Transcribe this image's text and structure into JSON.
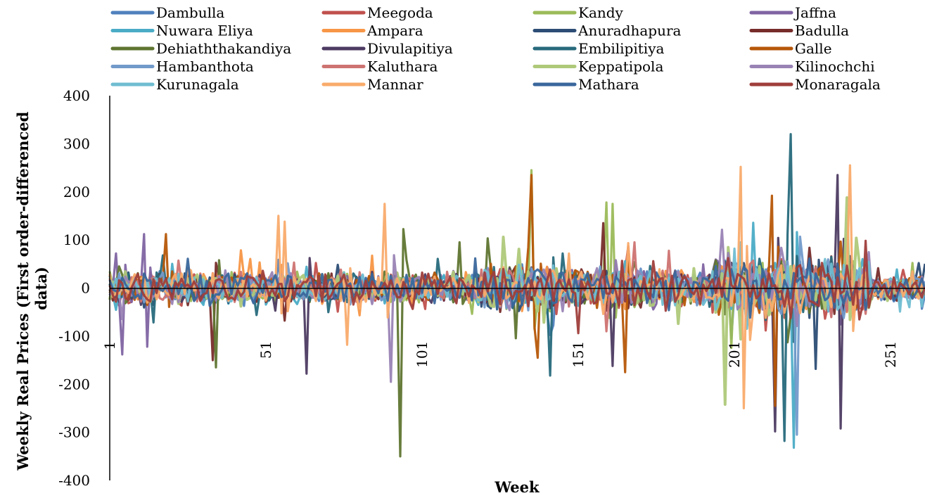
{
  "chart_data": {
    "type": "line",
    "title": "",
    "xlabel": "Week",
    "ylabel": "Weekly Real Prices (First order-differenced data)",
    "ylim": [
      -400,
      400
    ],
    "yticks": [
      400,
      300,
      200,
      100,
      0,
      -100,
      -200,
      -300,
      -400
    ],
    "xlim": [
      1,
      262
    ],
    "xticks": [
      1,
      51,
      101,
      151,
      201,
      251
    ],
    "grid": false,
    "legend_position": "top",
    "series": [
      {
        "name": "Dambulla",
        "color": "#4F81BD"
      },
      {
        "name": "Meegoda",
        "color": "#C0504D"
      },
      {
        "name": "Kandy",
        "color": "#9BBB59"
      },
      {
        "name": "Jaffna",
        "color": "#8064A2"
      },
      {
        "name": "Nuwara Eliya",
        "color": "#4BACC6"
      },
      {
        "name": "Ampara",
        "color": "#F79646"
      },
      {
        "name": "Anuradhapura",
        "color": "#2C4D75"
      },
      {
        "name": "Badulla",
        "color": "#772C2A"
      },
      {
        "name": "Dehiaththakandiya",
        "color": "#5F7530"
      },
      {
        "name": "Divulapitiya",
        "color": "#4D3B62"
      },
      {
        "name": "Embilipitiya",
        "color": "#276A7C"
      },
      {
        "name": "Galle",
        "color": "#B65708"
      },
      {
        "name": "Hambanthota",
        "color": "#729ACA"
      },
      {
        "name": "Kaluthara",
        "color": "#CD7371"
      },
      {
        "name": "Keppatipola",
        "color": "#AFC97A"
      },
      {
        "name": "Kilinochchi",
        "color": "#9983B5"
      },
      {
        "name": "Kurunagala",
        "color": "#6FBDD1"
      },
      {
        "name": "Mannar",
        "color": "#F9AB6B"
      },
      {
        "name": "Mathara",
        "color": "#3A679C"
      },
      {
        "name": "Monaragala",
        "color": "#9F3E3B"
      }
    ],
    "spikes": [
      {
        "series": "Jaffna",
        "week": 3,
        "value": 72
      },
      {
        "series": "Jaffna",
        "week": 5,
        "value": -138
      },
      {
        "series": "Jaffna",
        "week": 12,
        "value": 112
      },
      {
        "series": "Jaffna",
        "week": 13,
        "value": -122
      },
      {
        "series": "Galle",
        "week": 19,
        "value": 112
      },
      {
        "series": "Badulla",
        "week": 34,
        "value": -150
      },
      {
        "series": "Dehiaththakandiya",
        "week": 35,
        "value": -165
      },
      {
        "series": "Mannar",
        "week": 55,
        "value": 150
      },
      {
        "series": "Mannar",
        "week": 57,
        "value": 138
      },
      {
        "series": "Divulapitiya",
        "week": 64,
        "value": -178
      },
      {
        "series": "Mannar",
        "week": 77,
        "value": -118
      },
      {
        "series": "Mannar",
        "week": 89,
        "value": 175
      },
      {
        "series": "Kilinochchi",
        "week": 91,
        "value": -195
      },
      {
        "series": "Dehiaththakandiya",
        "week": 94,
        "value": -350
      },
      {
        "series": "Dehiaththakandiya",
        "week": 113,
        "value": 95
      },
      {
        "series": "Kandy",
        "week": 136,
        "value": 245
      },
      {
        "series": "Galle",
        "week": 136,
        "value": 235
      },
      {
        "series": "Galle",
        "week": 138,
        "value": -145
      },
      {
        "series": "Embilipitiya",
        "week": 142,
        "value": -182
      },
      {
        "series": "Badulla",
        "week": 159,
        "value": 135
      },
      {
        "series": "Kandy",
        "week": 160,
        "value": 178
      },
      {
        "series": "Kandy",
        "week": 162,
        "value": 175
      },
      {
        "series": "Divulapitiya",
        "week": 162,
        "value": -162
      },
      {
        "series": "Galle",
        "week": 166,
        "value": -175
      },
      {
        "series": "Keppatipola",
        "week": 198,
        "value": -242
      },
      {
        "series": "Mannar",
        "week": 203,
        "value": 252
      },
      {
        "series": "Mannar",
        "week": 205,
        "value": 308
      },
      {
        "series": "Mannar",
        "week": 204,
        "value": -250
      },
      {
        "series": "Galle",
        "week": 213,
        "value": 192
      },
      {
        "series": "Galle",
        "week": 214,
        "value": -245
      },
      {
        "series": "Divulapitiya",
        "week": 214,
        "value": -298
      },
      {
        "series": "Embilipitiya",
        "week": 217,
        "value": -318
      },
      {
        "series": "Embilipitiya",
        "week": 219,
        "value": 320
      },
      {
        "series": "Nuwara Eliya",
        "week": 220,
        "value": -332
      },
      {
        "series": "Hambanthota",
        "week": 221,
        "value": -305
      },
      {
        "series": "Anuradhapura",
        "week": 227,
        "value": -168
      },
      {
        "series": "Divulapitiya",
        "week": 234,
        "value": 235
      },
      {
        "series": "Divulapitiya",
        "week": 235,
        "value": -292
      },
      {
        "series": "Mannar",
        "week": 238,
        "value": 255
      },
      {
        "series": "Keppatipola",
        "week": 237,
        "value": 188
      },
      {
        "series": "Kandy",
        "week": 258,
        "value": 52
      }
    ]
  }
}
